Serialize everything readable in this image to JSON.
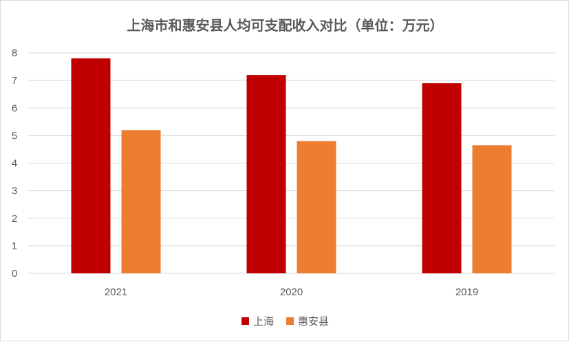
{
  "chart_data": {
    "type": "bar",
    "title": "上海市和惠安县人均可支配收入对比（单位：万元）",
    "categories": [
      "2021",
      "2020",
      "2019"
    ],
    "series": [
      {
        "name": "上海",
        "values": [
          7.8,
          7.2,
          6.9
        ],
        "color": "#c00000"
      },
      {
        "name": "惠安县",
        "values": [
          5.2,
          4.8,
          4.65
        ],
        "color": "#ed7d31"
      }
    ],
    "ylim": [
      0,
      8
    ],
    "yticks": [
      "0",
      "1",
      "2",
      "3",
      "4",
      "5",
      "6",
      "7",
      "8"
    ],
    "grid": true,
    "legend_position": "bottom"
  }
}
